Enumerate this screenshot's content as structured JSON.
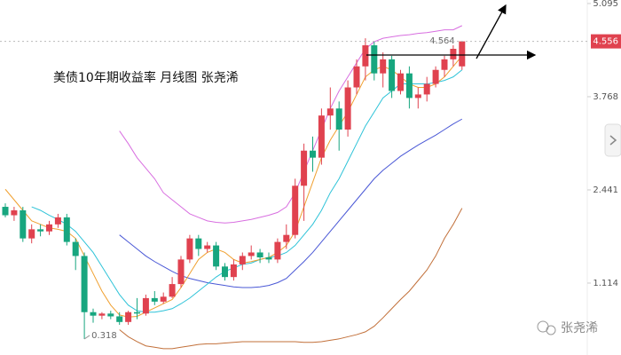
{
  "watermark": "张尧浠",
  "chart_data": {
    "type": "candlestick",
    "title": "美债10年期收益率 月线图 张尧浠",
    "ylim": [
      0.09,
      5.145
    ],
    "yticks": [
      1.114,
      2.441,
      3.768,
      5.095
    ],
    "up_color": "#e0424f",
    "down_color": "#17a67f",
    "candles": [
      {
        "open": 2.2,
        "high": 2.25,
        "low": 2.05,
        "close": 2.08
      },
      {
        "open": 2.08,
        "high": 2.2,
        "low": 2.0,
        "close": 2.15
      },
      {
        "open": 2.15,
        "high": 2.2,
        "low": 1.7,
        "close": 1.75
      },
      {
        "open": 1.75,
        "high": 1.95,
        "low": 1.68,
        "close": 1.88
      },
      {
        "open": 1.88,
        "high": 1.95,
        "low": 1.78,
        "close": 1.85
      },
      {
        "open": 1.85,
        "high": 2.0,
        "low": 1.8,
        "close": 1.95
      },
      {
        "open": 1.95,
        "high": 2.1,
        "low": 1.9,
        "close": 2.05
      },
      {
        "open": 2.05,
        "high": 2.1,
        "low": 1.65,
        "close": 1.7
      },
      {
        "open": 1.7,
        "high": 1.75,
        "low": 1.3,
        "close": 1.5
      },
      {
        "open": 1.5,
        "high": 1.55,
        "low": 0.318,
        "close": 0.7
      },
      {
        "open": 0.7,
        "high": 0.75,
        "low": 0.55,
        "close": 0.65
      },
      {
        "open": 0.65,
        "high": 0.7,
        "low": 0.6,
        "close": 0.68
      },
      {
        "open": 0.68,
        "high": 0.72,
        "low": 0.6,
        "close": 0.64
      },
      {
        "open": 0.64,
        "high": 0.7,
        "low": 0.52,
        "close": 0.56
      },
      {
        "open": 0.56,
        "high": 0.72,
        "low": 0.52,
        "close": 0.7
      },
      {
        "open": 0.7,
        "high": 0.9,
        "low": 0.6,
        "close": 0.68
      },
      {
        "open": 0.68,
        "high": 0.95,
        "low": 0.65,
        "close": 0.9
      },
      {
        "open": 0.9,
        "high": 1.0,
        "low": 0.8,
        "close": 0.85
      },
      {
        "open": 0.85,
        "high": 0.98,
        "low": 0.82,
        "close": 0.92
      },
      {
        "open": 0.92,
        "high": 1.2,
        "low": 0.9,
        "close": 1.1
      },
      {
        "open": 1.1,
        "high": 1.5,
        "low": 1.05,
        "close": 1.45
      },
      {
        "open": 1.45,
        "high": 1.8,
        "low": 1.4,
        "close": 1.75
      },
      {
        "open": 1.75,
        "high": 1.8,
        "low": 1.5,
        "close": 1.6
      },
      {
        "open": 1.6,
        "high": 1.7,
        "low": 1.55,
        "close": 1.65
      },
      {
        "open": 1.65,
        "high": 1.7,
        "low": 1.3,
        "close": 1.35
      },
      {
        "open": 1.35,
        "high": 1.4,
        "low": 1.15,
        "close": 1.2
      },
      {
        "open": 1.2,
        "high": 1.45,
        "low": 1.15,
        "close": 1.38
      },
      {
        "open": 1.38,
        "high": 1.55,
        "low": 1.3,
        "close": 1.5
      },
      {
        "open": 1.5,
        "high": 1.65,
        "low": 1.45,
        "close": 1.55
      },
      {
        "open": 1.55,
        "high": 1.6,
        "low": 1.4,
        "close": 1.48
      },
      {
        "open": 1.48,
        "high": 1.55,
        "low": 1.4,
        "close": 1.45
      },
      {
        "open": 1.45,
        "high": 1.75,
        "low": 1.4,
        "close": 1.7
      },
      {
        "open": 1.7,
        "high": 1.95,
        "low": 1.6,
        "close": 1.8
      },
      {
        "open": 1.8,
        "high": 2.6,
        "low": 1.75,
        "close": 2.5
      },
      {
        "open": 2.5,
        "high": 3.1,
        "low": 2.0,
        "close": 3.0
      },
      {
        "open": 3.0,
        "high": 3.2,
        "low": 2.7,
        "close": 2.9
      },
      {
        "open": 2.9,
        "high": 3.6,
        "low": 2.8,
        "close": 3.5
      },
      {
        "open": 3.5,
        "high": 3.9,
        "low": 3.3,
        "close": 3.6
      },
      {
        "open": 3.6,
        "high": 3.7,
        "low": 3.0,
        "close": 3.3
      },
      {
        "open": 3.3,
        "high": 4.0,
        "low": 3.2,
        "close": 3.9
      },
      {
        "open": 3.9,
        "high": 4.3,
        "low": 3.8,
        "close": 4.2
      },
      {
        "open": 4.2,
        "high": 4.6,
        "low": 4.0,
        "close": 4.5
      },
      {
        "open": 4.5,
        "high": 4.55,
        "low": 4.0,
        "close": 4.1
      },
      {
        "open": 4.1,
        "high": 4.4,
        "low": 3.9,
        "close": 4.3
      },
      {
        "open": 4.3,
        "high": 4.35,
        "low": 3.75,
        "close": 3.85
      },
      {
        "open": 3.85,
        "high": 4.15,
        "low": 3.8,
        "close": 4.1
      },
      {
        "open": 4.1,
        "high": 4.2,
        "low": 3.6,
        "close": 3.75
      },
      {
        "open": 3.75,
        "high": 3.9,
        "low": 3.6,
        "close": 3.8
      },
      {
        "open": 3.8,
        "high": 4.05,
        "low": 3.7,
        "close": 3.95
      },
      {
        "open": 3.95,
        "high": 4.2,
        "low": 3.9,
        "close": 4.15
      },
      {
        "open": 4.15,
        "high": 4.35,
        "low": 4.05,
        "close": 4.3
      },
      {
        "open": 4.3,
        "high": 4.5,
        "low": 4.2,
        "close": 4.45
      },
      {
        "open": 4.2,
        "high": 4.564,
        "low": 4.15,
        "close": 4.556
      }
    ],
    "lines": [
      {
        "color": "#d86ee0",
        "values": [
          null,
          null,
          null,
          null,
          null,
          null,
          null,
          null,
          null,
          null,
          null,
          null,
          null,
          3.28,
          3.1,
          2.9,
          2.75,
          2.6,
          2.4,
          2.3,
          2.2,
          2.1,
          2.05,
          2.0,
          1.98,
          1.97,
          1.98,
          2.0,
          2.02,
          2.05,
          2.08,
          2.12,
          2.2,
          2.4,
          2.7,
          3.0,
          3.3,
          3.6,
          3.85,
          4.05,
          4.25,
          4.45,
          4.55,
          4.6,
          4.62,
          4.64,
          4.65,
          4.67,
          4.68,
          4.7,
          4.72,
          4.72,
          4.78
        ]
      },
      {
        "color": "#4a58d6",
        "values": [
          null,
          null,
          null,
          null,
          null,
          null,
          null,
          null,
          null,
          null,
          null,
          null,
          null,
          1.8,
          1.7,
          1.6,
          1.5,
          1.42,
          1.35,
          1.28,
          1.22,
          1.18,
          1.15,
          1.12,
          1.1,
          1.08,
          1.06,
          1.05,
          1.05,
          1.06,
          1.08,
          1.12,
          1.18,
          1.3,
          1.42,
          1.55,
          1.7,
          1.85,
          2.0,
          2.15,
          2.3,
          2.45,
          2.6,
          2.72,
          2.82,
          2.92,
          3.0,
          3.08,
          3.15,
          3.22,
          3.3,
          3.38,
          3.45
        ]
      },
      {
        "color": "#c2703a",
        "values": [
          null,
          null,
          null,
          null,
          null,
          null,
          null,
          null,
          null,
          null,
          null,
          null,
          null,
          0.45,
          0.35,
          0.28,
          0.22,
          0.2,
          0.18,
          0.18,
          0.2,
          0.22,
          0.24,
          0.25,
          0.25,
          0.26,
          0.27,
          0.28,
          0.28,
          0.28,
          0.28,
          0.28,
          0.28,
          0.28,
          0.27,
          0.27,
          0.28,
          0.3,
          0.32,
          0.35,
          0.38,
          0.42,
          0.5,
          0.62,
          0.75,
          0.88,
          1.0,
          1.15,
          1.3,
          1.5,
          1.75,
          1.95,
          2.18
        ]
      },
      {
        "color": "#2ec3d8",
        "values": [
          null,
          null,
          null,
          2.2,
          2.15,
          2.08,
          2.02,
          1.95,
          1.85,
          1.7,
          1.55,
          1.35,
          1.15,
          0.95,
          0.8,
          0.72,
          0.7,
          0.7,
          0.72,
          0.75,
          0.82,
          0.9,
          1.0,
          1.1,
          1.2,
          1.28,
          1.33,
          1.38,
          1.4,
          1.45,
          1.48,
          1.5,
          1.55,
          1.65,
          1.8,
          1.95,
          2.15,
          2.4,
          2.6,
          2.85,
          3.1,
          3.35,
          3.55,
          3.75,
          3.85,
          3.95,
          3.95,
          3.95,
          3.95,
          3.97,
          4.0,
          4.05,
          4.15
        ]
      },
      {
        "color": "#f0a030",
        "values": [
          2.45,
          2.3,
          2.15,
          2.0,
          1.95,
          1.9,
          1.88,
          1.85,
          1.75,
          1.5,
          1.25,
          1.0,
          0.8,
          0.66,
          0.63,
          0.64,
          0.7,
          0.76,
          0.82,
          0.88,
          1.05,
          1.25,
          1.45,
          1.55,
          1.6,
          1.55,
          1.45,
          1.4,
          1.42,
          1.45,
          1.48,
          1.55,
          1.65,
          1.85,
          2.2,
          2.55,
          2.9,
          3.15,
          3.35,
          3.55,
          3.8,
          4.05,
          4.15,
          4.2,
          4.15,
          4.05,
          3.95,
          3.9,
          3.9,
          3.95,
          4.05,
          4.2,
          4.35
        ]
      }
    ]
  }
}
